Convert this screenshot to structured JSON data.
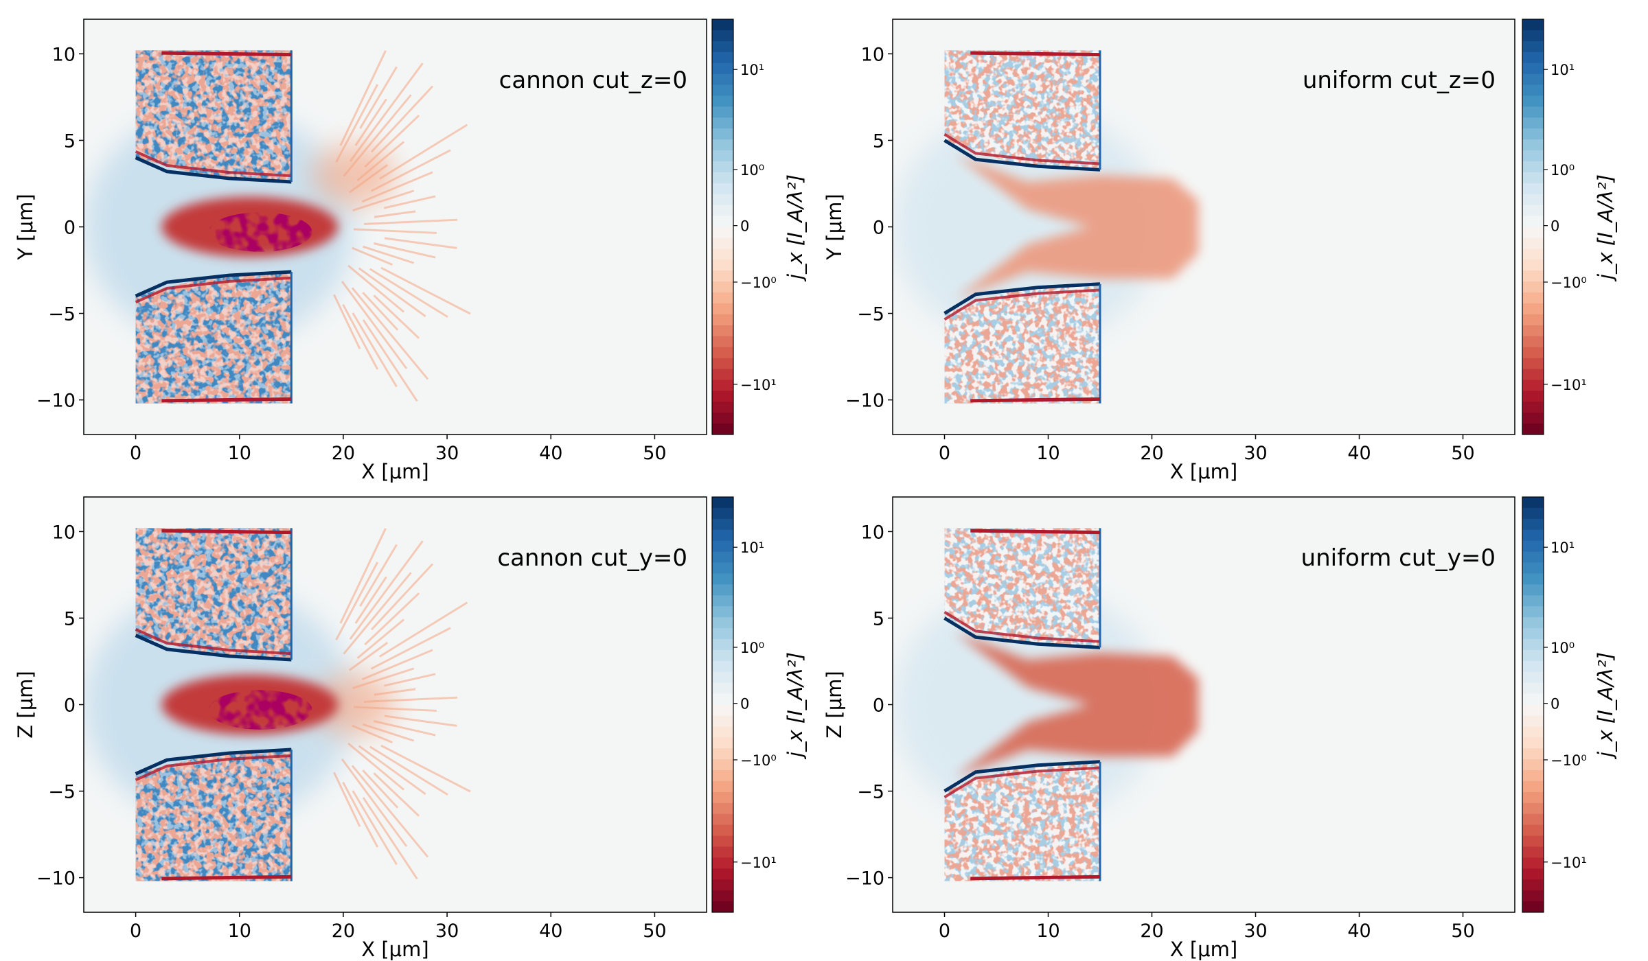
{
  "chart_data": [
    {
      "type": "heatmap",
      "title": "cannon cut_z=0",
      "xlabel": "X  [μm]",
      "ylabel": "Y  [μm]",
      "xlim": [
        -5,
        55
      ],
      "ylim": [
        -12,
        12
      ],
      "xticks": [
        "0",
        "10",
        "20",
        "30",
        "40",
        "50"
      ],
      "yticks": [
        "10",
        "5",
        "0",
        "−5",
        "−10"
      ],
      "colormap": "RdBu",
      "colorbar": {
        "label": "j_x  [I_A/λ²]",
        "scale": "symlog",
        "ticks": [
          "10¹",
          "10⁰",
          "0",
          "−10⁰",
          "−10¹"
        ]
      },
      "grid": false
    },
    {
      "type": "heatmap",
      "title": "uniform cut_z=0",
      "xlabel": "X  [μm]",
      "ylabel": "Y  [μm]",
      "xlim": [
        -5,
        55
      ],
      "ylim": [
        -12,
        12
      ],
      "xticks": [
        "0",
        "10",
        "20",
        "30",
        "40",
        "50"
      ],
      "yticks": [
        "10",
        "5",
        "0",
        "−5",
        "−10"
      ],
      "colormap": "RdBu",
      "colorbar": {
        "label": "j_x  [I_A/λ²]",
        "scale": "symlog",
        "ticks": [
          "10¹",
          "10⁰",
          "0",
          "−10⁰",
          "−10¹"
        ]
      },
      "grid": false
    },
    {
      "type": "heatmap",
      "title": "cannon cut_y=0",
      "xlabel": "X  [μm]",
      "ylabel": "Z  [μm]",
      "xlim": [
        -5,
        55
      ],
      "ylim": [
        -12,
        12
      ],
      "xticks": [
        "0",
        "10",
        "20",
        "30",
        "40",
        "50"
      ],
      "yticks": [
        "10",
        "5",
        "0",
        "−5",
        "−10"
      ],
      "colormap": "RdBu",
      "colorbar": {
        "label": "j_x  [I_A/λ²]",
        "scale": "symlog",
        "ticks": [
          "10¹",
          "10⁰",
          "0",
          "−10⁰",
          "−10¹"
        ]
      },
      "grid": false
    },
    {
      "type": "heatmap",
      "title": "uniform cut_y=0",
      "xlabel": "X  [μm]",
      "ylabel": "Z  [μm]",
      "xlim": [
        -5,
        55
      ],
      "ylim": [
        -12,
        12
      ],
      "xticks": [
        "0",
        "10",
        "20",
        "30",
        "40",
        "50"
      ],
      "yticks": [
        "10",
        "5",
        "0",
        "−5",
        "−10"
      ],
      "colormap": "RdBu",
      "colorbar": {
        "label": "j_x  [I_A/λ²]",
        "scale": "symlog",
        "ticks": [
          "10¹",
          "10⁰",
          "0",
          "−10⁰",
          "−10¹"
        ]
      },
      "grid": false
    }
  ],
  "colors": {
    "background": "#f4f6f6",
    "rdbu": [
      "#053061",
      "#2166ac",
      "#4393c3",
      "#92c5de",
      "#d1e5f0",
      "#f7f7f7",
      "#fddbc7",
      "#f4a582",
      "#d6604d",
      "#b2182b",
      "#67001f"
    ]
  }
}
